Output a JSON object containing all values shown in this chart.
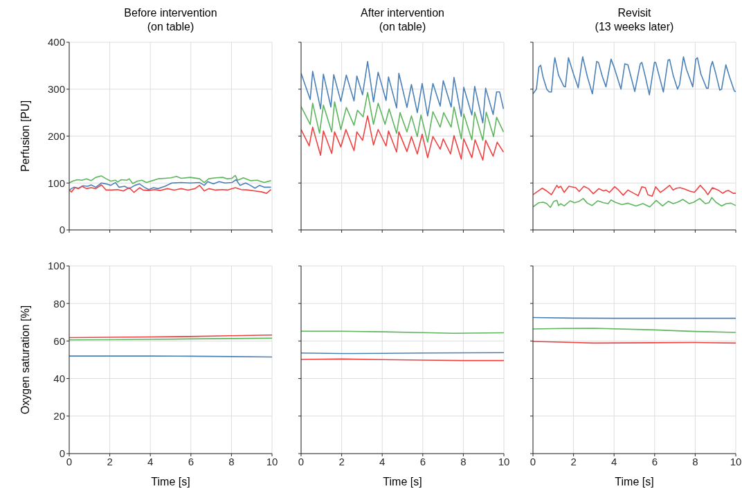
{
  "chart_data": [
    {
      "type": "line",
      "title": "Before intervention\n(on table)",
      "ylabel": "Perfusion [PU]",
      "xlim": [
        0,
        10
      ],
      "xticks": [
        0,
        2,
        4,
        6,
        8,
        10
      ],
      "ylim": [
        0,
        400
      ],
      "yticks": [
        0,
        100,
        200,
        300,
        400
      ],
      "grid": true,
      "marker": "none",
      "tick_labels": "y",
      "series": [
        {
          "color": "#5db55d",
          "x": [
            0,
            0.17,
            0.4,
            0.63,
            0.85,
            1.08,
            1.31,
            1.59,
            1.82,
            2.05,
            2.28,
            2.39,
            2.56,
            2.84,
            2.96,
            3.13,
            3.36,
            3.58,
            3.81,
            4.1,
            4.38,
            4.72,
            5.01,
            5.29,
            5.52,
            5.97,
            6.43,
            6.66,
            6.88,
            7.22,
            7.57,
            7.79,
            8.02,
            8.19,
            8.3,
            8.59,
            8.93,
            9.27,
            9.61,
            9.95
          ],
          "values": [
            100,
            104,
            107,
            106,
            109,
            105,
            112,
            115,
            109,
            104,
            106,
            102,
            107,
            106,
            109,
            99,
            104,
            106,
            101,
            105,
            109,
            110,
            111,
            114,
            110,
            112,
            109,
            101,
            109,
            111,
            112,
            109,
            110,
            116,
            106,
            111,
            105,
            106,
            101,
            105
          ]
        },
        {
          "color": "#4a80b8",
          "x": [
            0,
            0.23,
            0.46,
            0.68,
            0.91,
            1.08,
            1.31,
            1.59,
            1.82,
            2.05,
            2.28,
            2.45,
            2.73,
            2.96,
            3.24,
            3.47,
            3.7,
            3.92,
            4.15,
            4.38,
            4.72,
            5.06,
            5.52,
            5.97,
            6.43,
            6.66,
            6.83,
            7.11,
            7.39,
            7.68,
            8.02,
            8.23,
            8.42,
            8.7,
            8.93,
            9.16,
            9.39,
            9.61,
            9.95
          ],
          "values": [
            85,
            91,
            89,
            94,
            93,
            96,
            91,
            100,
            98,
            95,
            101,
            91,
            93,
            88,
            95,
            98,
            91,
            86,
            90,
            88,
            93,
            100,
            101,
            100,
            101,
            95,
            103,
            98,
            103,
            100,
            101,
            107,
            95,
            100,
            95,
            89,
            95,
            91,
            91
          ]
        },
        {
          "color": "#f04040",
          "x": [
            0,
            0.11,
            0.28,
            0.46,
            0.63,
            0.85,
            1.08,
            1.31,
            1.59,
            1.82,
            2.1,
            2.39,
            2.67,
            2.96,
            3.19,
            3.47,
            3.64,
            3.92,
            4.21,
            4.49,
            4.84,
            5.18,
            5.52,
            5.86,
            6.2,
            6.43,
            6.66,
            6.88,
            7.22,
            7.57,
            7.79,
            8.19,
            8.48,
            8.82,
            9.16,
            9.5,
            9.73,
            9.95
          ],
          "values": [
            85,
            81,
            90,
            88,
            93,
            88,
            90,
            88,
            96,
            85,
            85,
            86,
            83,
            90,
            80,
            90,
            85,
            84,
            86,
            84,
            88,
            85,
            88,
            85,
            88,
            95,
            83,
            88,
            85,
            86,
            85,
            90,
            86,
            85,
            83,
            81,
            78,
            86
          ]
        }
      ]
    },
    {
      "type": "line",
      "title": "After intervention\n(on table)",
      "xlim": [
        0,
        10
      ],
      "xticks": [
        0,
        2,
        4,
        6,
        8,
        10
      ],
      "ylim": [
        0,
        400
      ],
      "yticks": [
        0,
        100,
        200,
        300,
        400
      ],
      "grid": true,
      "marker": "none",
      "tick_labels": false,
      "series": [
        {
          "color": "#4a80b8",
          "x": [
            0,
            0.45,
            0.57,
            0.96,
            1.1,
            1.47,
            1.61,
            1.96,
            2.23,
            2.61,
            2.75,
            3.03,
            3.28,
            3.57,
            3.8,
            4.19,
            4.31,
            4.71,
            4.82,
            5.22,
            5.44,
            5.73,
            5.97,
            6.24,
            6.5,
            6.86,
            7.01,
            7.4,
            7.54,
            7.9,
            8.02,
            8.42,
            8.56,
            8.96,
            9.1,
            9.47,
            9.64,
            9.79,
            9.98
          ],
          "values": [
            334,
            278,
            338,
            258,
            332,
            262,
            331,
            274,
            330,
            275,
            328,
            288,
            359,
            273,
            336,
            276,
            326,
            260,
            334,
            261,
            310,
            250,
            312,
            243,
            312,
            264,
            318,
            262,
            325,
            242,
            304,
            245,
            306,
            228,
            302,
            246,
            294,
            294,
            258
          ]
        },
        {
          "color": "#5db55d",
          "x": [
            0,
            0.45,
            0.57,
            0.91,
            1.1,
            1.51,
            1.65,
            1.96,
            2.23,
            2.61,
            2.78,
            3.06,
            3.28,
            3.57,
            3.8,
            4.14,
            4.34,
            4.71,
            4.88,
            5.22,
            5.44,
            5.73,
            5.91,
            6.24,
            6.5,
            6.86,
            7.03,
            7.4,
            7.54,
            7.9,
            8.02,
            8.42,
            8.56,
            8.96,
            9.13,
            9.49,
            9.64,
            9.98
          ],
          "values": [
            263,
            225,
            270,
            206,
            266,
            209,
            273,
            214,
            261,
            223,
            255,
            241,
            293,
            225,
            270,
            225,
            258,
            206,
            250,
            209,
            243,
            199,
            245,
            187,
            252,
            219,
            250,
            219,
            262,
            194,
            247,
            192,
            251,
            191,
            251,
            199,
            240,
            209
          ]
        },
        {
          "color": "#f04040",
          "x": [
            0,
            0.4,
            0.57,
            0.96,
            1.1,
            1.51,
            1.65,
            1.96,
            2.21,
            2.61,
            2.75,
            3.03,
            3.28,
            3.57,
            3.8,
            4.19,
            4.31,
            4.71,
            4.82,
            5.22,
            5.44,
            5.73,
            5.97,
            6.24,
            6.5,
            6.86,
            7.01,
            7.37,
            7.54,
            7.9,
            8.02,
            8.42,
            8.58,
            8.96,
            9.1,
            9.47,
            9.67,
            9.98
          ],
          "values": [
            214,
            179,
            219,
            159,
            211,
            163,
            209,
            177,
            214,
            169,
            209,
            191,
            243,
            181,
            214,
            179,
            211,
            166,
            209,
            167,
            199,
            162,
            204,
            154,
            199,
            172,
            194,
            162,
            201,
            151,
            194,
            154,
            192,
            149,
            191,
            157,
            187,
            166
          ]
        }
      ]
    },
    {
      "type": "line",
      "title": "Revisit\n(13 weeks later)",
      "xlim": [
        0,
        10
      ],
      "xticks": [
        0,
        2,
        4,
        6,
        8,
        10
      ],
      "ylim": [
        0,
        400
      ],
      "yticks": [
        0,
        100,
        200,
        300,
        400
      ],
      "grid": true,
      "marker": "none",
      "tick_labels": false,
      "series": [
        {
          "color": "#4a80b8",
          "x": [
            0,
            0.17,
            0.29,
            0.38,
            0.49,
            0.68,
            0.8,
            0.91,
            1.03,
            1.08,
            1.26,
            1.52,
            1.6,
            1.75,
            2.0,
            2.23,
            2.45,
            2.68,
            2.93,
            3.14,
            3.23,
            3.42,
            3.6,
            3.85,
            4.0,
            4.34,
            4.53,
            4.68,
            5.02,
            5.29,
            5.37,
            5.54,
            5.74,
            5.99,
            6.05,
            6.43,
            6.66,
            6.74,
            6.91,
            7.13,
            7.23,
            7.42,
            7.57,
            7.88,
            8.03,
            8.11,
            8.28,
            8.56,
            8.64,
            8.76,
            8.85,
            9.02,
            9.21,
            9.3,
            9.51,
            9.7,
            9.93,
            10
          ],
          "values": [
            290,
            300,
            347,
            351,
            327,
            300,
            294,
            294,
            352,
            367,
            330,
            306,
            305,
            367,
            332,
            303,
            369,
            327,
            290,
            359,
            357,
            327,
            305,
            364,
            347,
            300,
            354,
            352,
            295,
            354,
            357,
            327,
            288,
            357,
            357,
            294,
            362,
            363,
            330,
            300,
            310,
            369,
            342,
            305,
            364,
            367,
            332,
            302,
            302,
            347,
            359,
            332,
            298,
            300,
            352,
            325,
            296,
            295
          ]
        },
        {
          "color": "#f04040",
          "x": [
            0,
            0.23,
            0.46,
            0.68,
            0.91,
            1.18,
            1.26,
            1.37,
            1.54,
            1.77,
            2.11,
            2.28,
            2.51,
            2.74,
            2.97,
            3.25,
            3.48,
            3.6,
            3.77,
            4.03,
            4.22,
            4.45,
            4.68,
            4.97,
            5.19,
            5.37,
            5.54,
            5.67,
            5.88,
            6.05,
            6.28,
            6.45,
            6.74,
            6.91,
            7.08,
            7.25,
            7.48,
            7.71,
            7.96,
            8.25,
            8.5,
            8.62,
            8.85,
            9.13,
            9.36,
            9.53,
            9.65,
            9.87,
            10
          ],
          "values": [
            75,
            82,
            89,
            83,
            75,
            95,
            90,
            93,
            80,
            93,
            90,
            82,
            93,
            88,
            77,
            88,
            83,
            85,
            80,
            92,
            85,
            74,
            85,
            78,
            73,
            92,
            90,
            75,
            72,
            92,
            80,
            85,
            95,
            85,
            89,
            90,
            87,
            83,
            80,
            95,
            83,
            75,
            90,
            85,
            78,
            83,
            84,
            78,
            78
          ]
        },
        {
          "color": "#5db55d",
          "x": [
            0,
            0.29,
            0.51,
            0.68,
            0.86,
            1.03,
            1.18,
            1.26,
            1.37,
            1.54,
            1.83,
            2.05,
            2.28,
            2.48,
            2.68,
            2.91,
            3.2,
            3.48,
            3.71,
            3.85,
            4.05,
            4.39,
            4.68,
            5.08,
            5.42,
            5.76,
            6.08,
            6.39,
            6.68,
            6.91,
            7.13,
            7.39,
            7.71,
            7.93,
            8.22,
            8.5,
            8.68,
            8.82,
            9.02,
            9.3,
            9.53,
            9.76,
            10
          ],
          "values": [
            49,
            58,
            59,
            56,
            48,
            61,
            63,
            52,
            56,
            51,
            62,
            58,
            61,
            67,
            57,
            52,
            62,
            58,
            56,
            64,
            59,
            54,
            57,
            51,
            56,
            49,
            63,
            51,
            61,
            56,
            59,
            65,
            56,
            59,
            67,
            56,
            58,
            69,
            59,
            51,
            56,
            57,
            52
          ]
        }
      ]
    },
    {
      "type": "line",
      "xlabel": "Time [s]",
      "ylabel": "Oxygen saturation [%]",
      "xlim": [
        0,
        10
      ],
      "xticks": [
        0,
        2,
        4,
        6,
        8,
        10
      ],
      "ylim": [
        0,
        100
      ],
      "yticks": [
        0,
        20,
        40,
        60,
        80,
        100
      ],
      "grid": true,
      "marker": "none",
      "series": [
        {
          "color": "#f04040",
          "x": [
            0,
            2,
            4,
            6,
            8,
            10
          ],
          "values": [
            61.8,
            62,
            62.2,
            62.4,
            62.8,
            63.2
          ]
        },
        {
          "color": "#5db55d",
          "x": [
            0,
            2,
            4,
            6,
            8,
            10
          ],
          "values": [
            60.6,
            60.7,
            60.9,
            61.1,
            61.3,
            61.5
          ]
        },
        {
          "color": "#4a80b8",
          "x": [
            0,
            2,
            4,
            6,
            8,
            10
          ],
          "values": [
            52,
            52,
            52,
            51.9,
            51.7,
            51.5
          ]
        }
      ]
    },
    {
      "type": "line",
      "xlabel": "Time [s]",
      "xlim": [
        0,
        10
      ],
      "xticks": [
        0,
        2,
        4,
        6,
        8,
        10
      ],
      "ylim": [
        0,
        100
      ],
      "yticks": [
        0,
        20,
        40,
        60,
        80,
        100
      ],
      "grid": true,
      "marker": "none",
      "tick_labels": "x",
      "series": [
        {
          "color": "#5db55d",
          "x": [
            0,
            2,
            4,
            6,
            7.5,
            10
          ],
          "values": [
            65.2,
            65.2,
            64.9,
            64.5,
            64.1,
            64.4
          ]
        },
        {
          "color": "#4a80b8",
          "x": [
            0,
            2,
            4,
            6,
            8,
            10
          ],
          "values": [
            53.6,
            53.3,
            53.4,
            53.6,
            53.7,
            53.8
          ]
        },
        {
          "color": "#f04040",
          "x": [
            0,
            2,
            4,
            6,
            8,
            10
          ],
          "values": [
            50.2,
            50.4,
            50.1,
            49.8,
            49.6,
            49.6
          ]
        }
      ]
    },
    {
      "type": "line",
      "xlabel": "Time [s]",
      "xlim": [
        0,
        10
      ],
      "xticks": [
        0,
        2,
        4,
        6,
        8,
        10
      ],
      "ylim": [
        0,
        100
      ],
      "yticks": [
        0,
        20,
        40,
        60,
        80,
        100
      ],
      "grid": true,
      "marker": "none",
      "tick_labels": "x",
      "series": [
        {
          "color": "#4a80b8",
          "x": [
            0,
            2,
            4,
            6,
            8,
            10
          ],
          "values": [
            72.5,
            72.2,
            72.1,
            72.1,
            72.1,
            72.1
          ]
        },
        {
          "color": "#5db55d",
          "x": [
            0,
            1.5,
            3,
            6,
            8,
            10
          ],
          "values": [
            66.4,
            66.7,
            66.8,
            65.9,
            65.1,
            64.6
          ]
        },
        {
          "color": "#f04040",
          "x": [
            0,
            2,
            3,
            6,
            8,
            10
          ],
          "values": [
            59.8,
            59.2,
            58.9,
            59.1,
            59.2,
            58.9
          ]
        }
      ]
    }
  ]
}
